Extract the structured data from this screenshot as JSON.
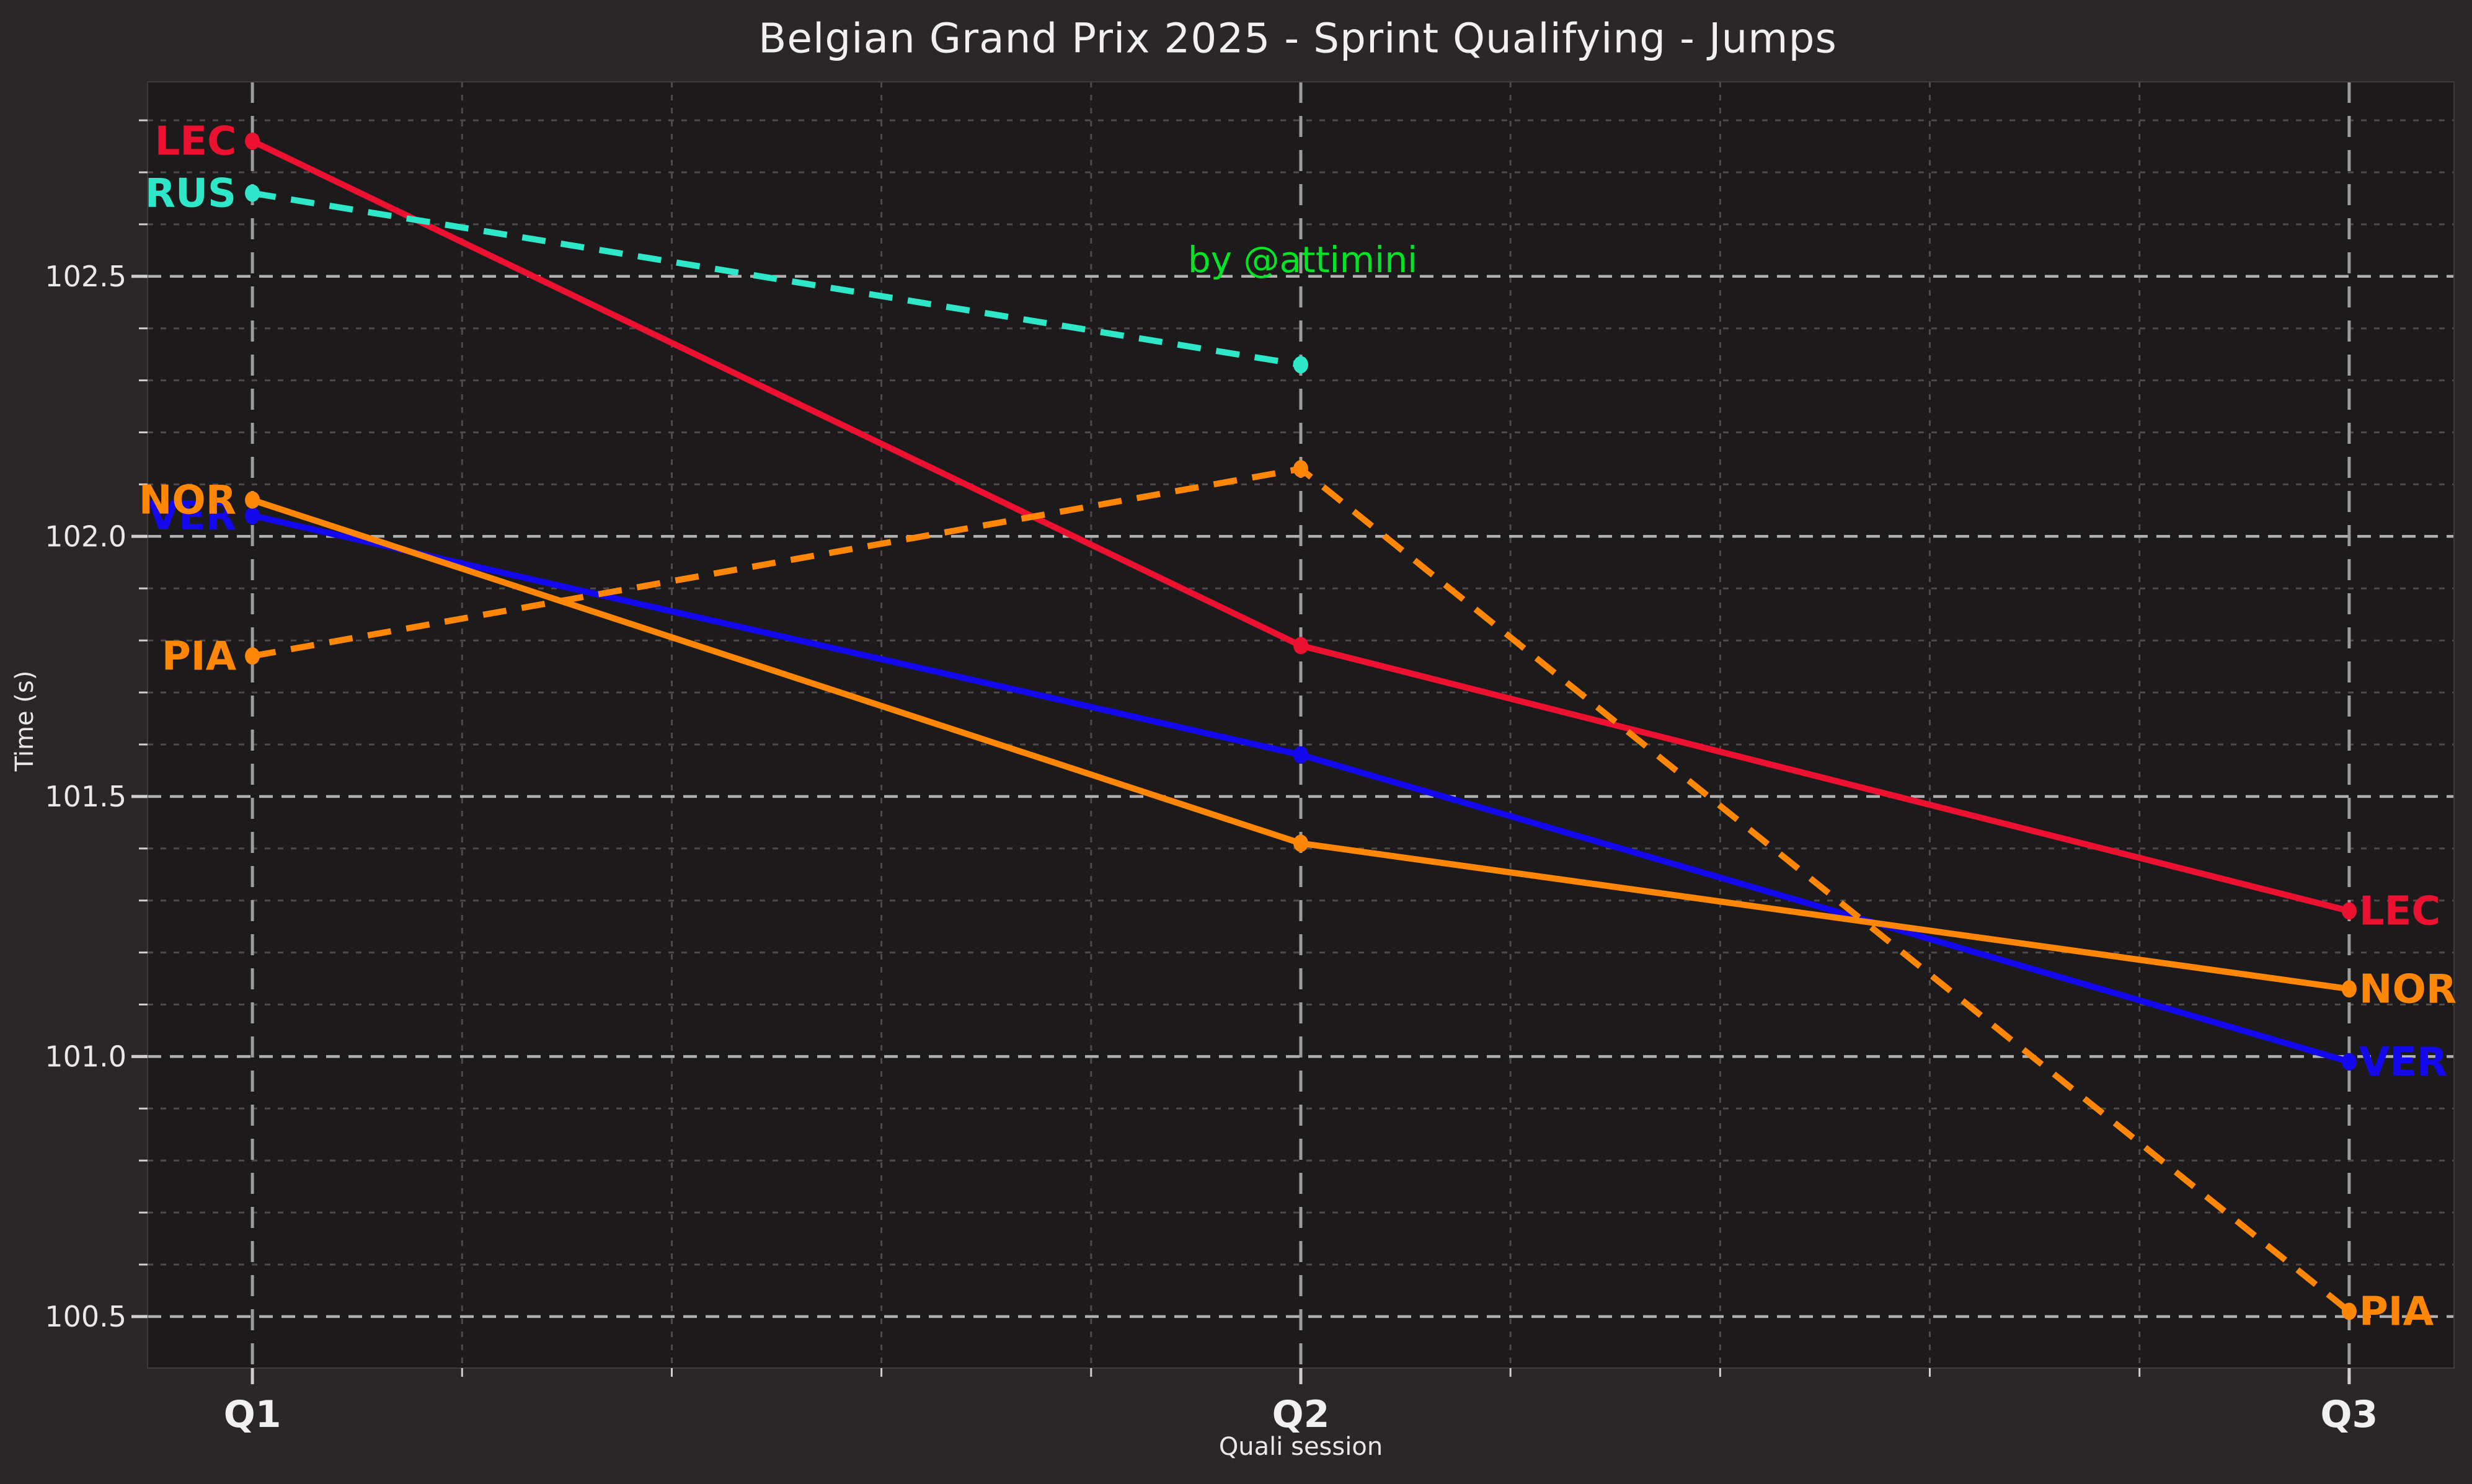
{
  "figure": {
    "title": "Belgian Grand Prix 2025 - Sprint Qualifying - Jumps",
    "annotation_text": "by @attimini",
    "xlabel": "Quali session",
    "ylabel": "Time (s)"
  },
  "chart_data": {
    "type": "line",
    "title": "Belgian Grand Prix 2025 - Sprint Qualifying - Jumps",
    "xlabel": "Quali session",
    "ylabel": "Time (s)",
    "categories": [
      "Q1",
      "Q2",
      "Q3"
    ],
    "series": [
      {
        "name": "LEC",
        "color": "#ed1131",
        "style": "solid",
        "values": [
          102.76,
          101.79,
          101.28
        ]
      },
      {
        "name": "RUS",
        "color": "#2ee6c8",
        "style": "dashed",
        "values": [
          102.66,
          102.33,
          null
        ]
      },
      {
        "name": "VER",
        "color": "#1408ef",
        "style": "solid",
        "values": [
          102.04,
          101.58,
          100.99
        ]
      },
      {
        "name": "NOR",
        "color": "#ff8705",
        "style": "solid",
        "values": [
          102.07,
          101.41,
          101.13
        ]
      },
      {
        "name": "PIA",
        "color": "#ff8705",
        "style": "dashed",
        "values": [
          101.77,
          102.13,
          100.51
        ]
      }
    ],
    "annotation": {
      "text": "by @attimini",
      "x": 1,
      "y": 102.53,
      "color": "#00e626"
    },
    "xlim": [
      -0.1,
      2.1
    ],
    "ylim": [
      100.401,
      102.874
    ],
    "yticks_major": [
      100.5,
      101.0,
      101.5,
      102.0,
      102.5
    ],
    "ytick_labels": [
      "100.5",
      "101.0",
      "101.5",
      "102.0",
      "102.5"
    ],
    "y_minor_step": 0.1,
    "x_minor_step": 0.2,
    "grid": "major dashed + minor dotted, both axes",
    "legend": "none - direct driver-code labels at line start and end",
    "label_style": "driver codes bold, colored per team, left of Q1 points and right of Q3 points"
  },
  "colors": {
    "figure_background": "#2b2627",
    "plot_background": "#1c1a1a",
    "major_grid": "#b0b0b0",
    "vertical_major_grid": "#9c9c9c",
    "minor_grid": "#4e4a4a",
    "tick": "#cfcfcf",
    "text": "#f0f0f0",
    "annotation_green": "#00e626",
    "leclerc_red": "#ed1131",
    "russell_teal": "#2ee6c8",
    "verstappen_blue": "#1408ef",
    "mclaren_orange": "#ff8705"
  }
}
